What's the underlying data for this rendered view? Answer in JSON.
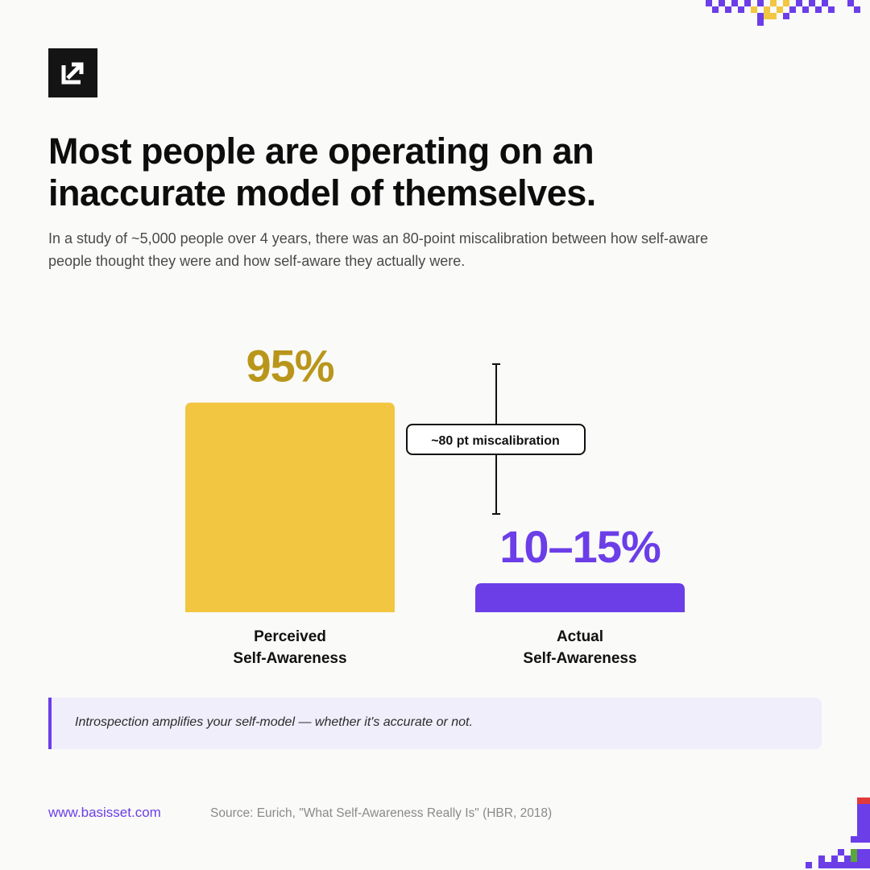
{
  "header": {
    "title_line1": "Most people are operating on an",
    "title_line2": "inaccurate model of themselves.",
    "subtitle_line1": "In a study of ~5,000 people over 4 years, there was an 80-point miscalibration between how self-aware",
    "subtitle_line2": "people thought they were and how self-aware they actually were."
  },
  "chart_data": {
    "type": "bar",
    "categories": [
      "Perceived Self-Awareness",
      "Actual Self-Awareness"
    ],
    "category_label_lines": [
      [
        "Perceived",
        "Self-Awareness"
      ],
      [
        "Actual",
        "Self-Awareness"
      ]
    ],
    "values": [
      95,
      12.5
    ],
    "data_labels": [
      "95%",
      "10–15%"
    ],
    "colors": [
      "#f2c641",
      "#6b3ee8"
    ],
    "label_colors": [
      "#b9961b",
      "#6b3ee8"
    ],
    "annotation": "~80 pt miscalibration",
    "ylim": [
      0,
      100
    ]
  },
  "callout": {
    "text": "Introspection amplifies your self-model — whether it's accurate or not."
  },
  "footer": {
    "url": "www.basisset.com",
    "source": "Source: Eurich, \"What Self-Awareness Really Is\" (HBR, 2018)"
  },
  "colors": {
    "accent": "#6b3ee8",
    "yellow": "#f2c641",
    "background": "#fafaf8"
  },
  "icons": {
    "logo": "diagonal-arrow-logo-icon"
  }
}
